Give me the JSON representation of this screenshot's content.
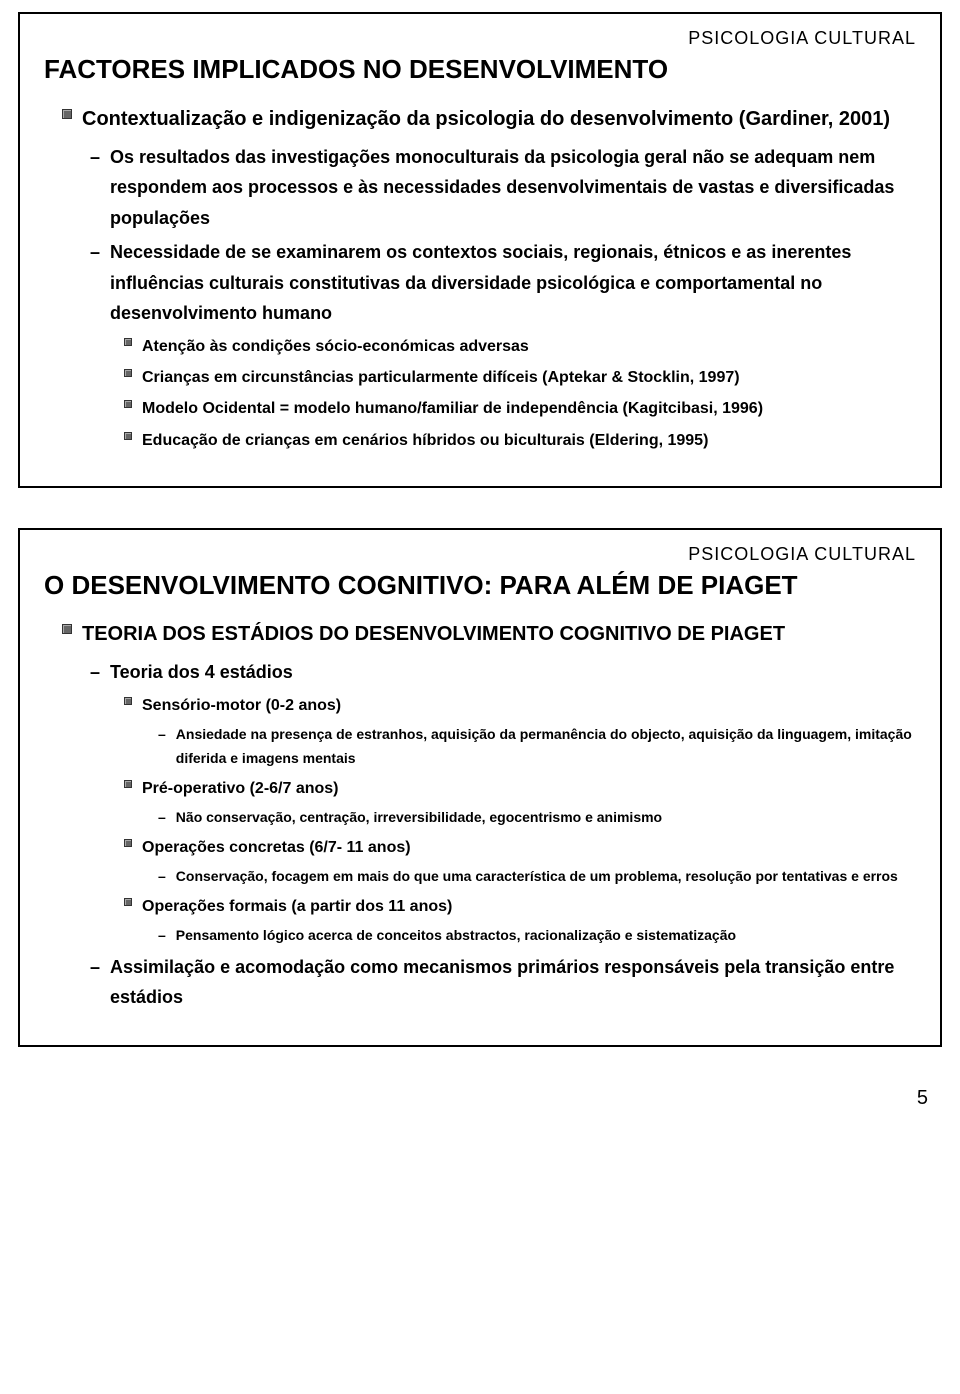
{
  "header_label": "PSICOLOGIA CULTURAL",
  "page_number": "5",
  "slide1": {
    "title": "FACTORES IMPLICADOS NO DESENVOLVIMENTO",
    "lvl1_a": "Contextualização e indigenização da psicologia do desenvolvimento (Gardiner, 2001)",
    "lvl2_a": "Os resultados das investigações monoculturais da psicologia geral não se adequam nem respondem aos processos e às necessidades desenvolvimentais de vastas e diversificadas populações",
    "lvl2_b": "Necessidade de se examinarem os contextos sociais, regionais, étnicos e as inerentes influências culturais constitutivas da diversidade psicológica e comportamental no desenvolvimento humano",
    "lvl3_a": "Atenção às condições sócio-económicas adversas",
    "lvl3_b": "Crianças em circunstâncias particularmente difíceis (Aptekar & Stocklin, 1997)",
    "lvl3_c": "Modelo Ocidental = modelo humano/familiar de independência (Kagitcibasi, 1996)",
    "lvl3_d": "Educação de crianças em cenários híbridos ou biculturais (Eldering, 1995)"
  },
  "slide2": {
    "title": "O DESENVOLVIMENTO COGNITIVO: PARA ALÉM DE PIAGET",
    "lvl1_a": "TEORIA DOS ESTÁDIOS DO DESENVOLVIMENTO COGNITIVO DE PIAGET",
    "lvl2_a": "Teoria dos 4 estádios",
    "lvl3_a": "Sensório-motor (0-2 anos)",
    "lvl4_a": "Ansiedade na presença de estranhos, aquisição da permanência do objecto, aquisição da linguagem, imitação diferida e imagens mentais",
    "lvl3_b": "Pré-operativo (2-6/7 anos)",
    "lvl4_b": "Não conservação, centração, irreversibilidade, egocentrismo e animismo",
    "lvl3_c": "Operações concretas (6/7- 11 anos)",
    "lvl4_c": "Conservação, focagem em mais do que uma característica de um problema, resolução por tentativas e erros",
    "lvl3_d": "Operações formais (a partir dos 11 anos)",
    "lvl4_d": "Pensamento lógico acerca de conceitos abstractos, racionalização e sistematização",
    "lvl2_b": "Assimilação e acomodação como mecanismos primários responsáveis pela transição entre estádios"
  }
}
